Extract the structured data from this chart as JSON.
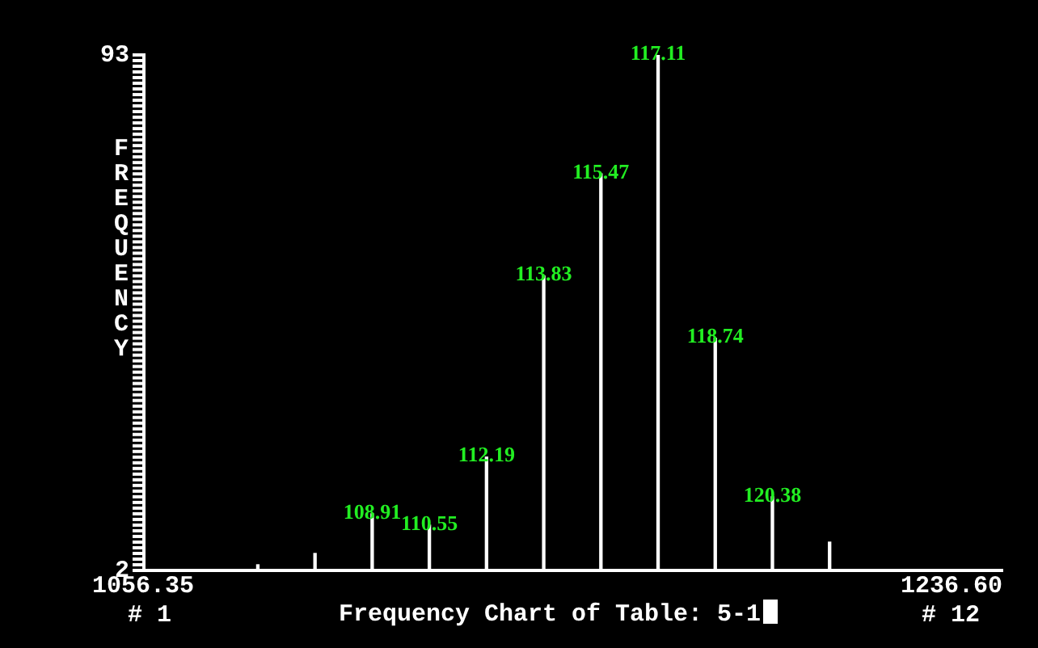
{
  "chart_data": {
    "type": "bar",
    "title": "Frequency Chart of Table: 5-1",
    "ylabel": "FREQUENCY",
    "categories": [
      null,
      null,
      "108.91",
      "110.55",
      "112.19",
      "113.83",
      "115.47",
      "117.11",
      "118.74",
      "120.38",
      null
    ],
    "values": [
      3,
      5,
      12,
      10,
      22,
      54,
      72,
      93,
      43,
      15,
      7
    ],
    "color": "#ffffff",
    "annotations": [
      "1056.35",
      "# 1",
      "1236.60",
      "# 12"
    ],
    "ylim": [
      2,
      93
    ],
    "yticks": [
      2,
      93
    ],
    "grid": false
  }
}
